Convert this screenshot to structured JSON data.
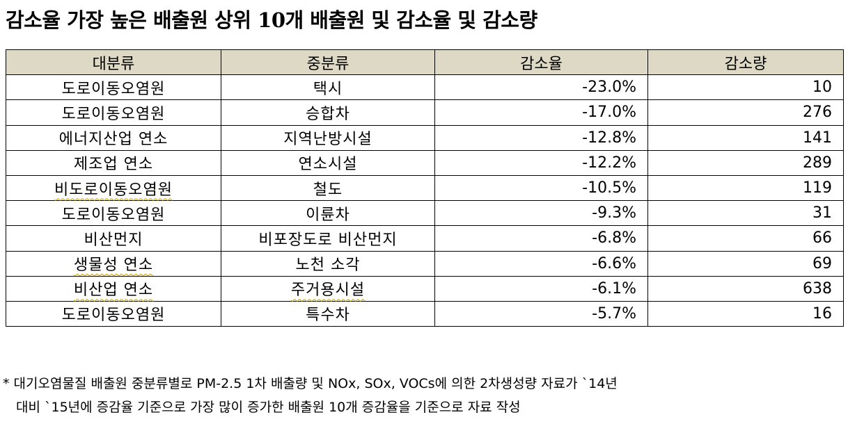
{
  "title": "감소율 가장 높은 배출원 상위 10개 배출원 및 감소율 및 감소량",
  "table": {
    "headers": [
      "대분류",
      "중분류",
      "감소율",
      "감소량"
    ],
    "rows": [
      {
        "major": "도로이동오염원",
        "mid": "택시",
        "rate": "-23.0%",
        "amount": "10"
      },
      {
        "major": "도로이동오염원",
        "mid": "승합차",
        "rate": "-17.0%",
        "amount": "276"
      },
      {
        "major": "에너지산업 연소",
        "mid": "지역난방시설",
        "rate": "-12.8%",
        "amount": "141"
      },
      {
        "major": "제조업 연소",
        "mid": "연소시설",
        "rate": "-12.2%",
        "amount": "289"
      },
      {
        "major": "비도로이동오염원",
        "mid": "철도",
        "rate": "-10.5%",
        "amount": "119"
      },
      {
        "major": "도로이동오염원",
        "mid": "이륜차",
        "rate": "-9.3%",
        "amount": "31"
      },
      {
        "major": "비산먼지",
        "mid": "비포장도로 비산먼지",
        "rate": "-6.8%",
        "amount": "66"
      },
      {
        "major": "생물성 연소",
        "mid": "노천 소각",
        "rate": "-6.6%",
        "amount": "69"
      },
      {
        "major": "비산업 연소",
        "mid": "주거용시설",
        "rate": "-6.1%",
        "amount": "638"
      },
      {
        "major": "도로이동오염원",
        "mid": "특수차",
        "rate": "-5.7%",
        "amount": "16"
      }
    ]
  },
  "notes": [
    "* 대기오염물질 배출원 중분류별로 PM-2.5 1차 배출량 및 NOx, SOx, VOCs에 의한 2차생성량 자료가 `14년",
    "대비 `15년에 증감율 기준으로 가장 많이 증가한 배출원 10개 증감율을 기준으로 자료 작성"
  ],
  "colors": {
    "header_bg": "#ddd9c4",
    "border": "#000000"
  }
}
